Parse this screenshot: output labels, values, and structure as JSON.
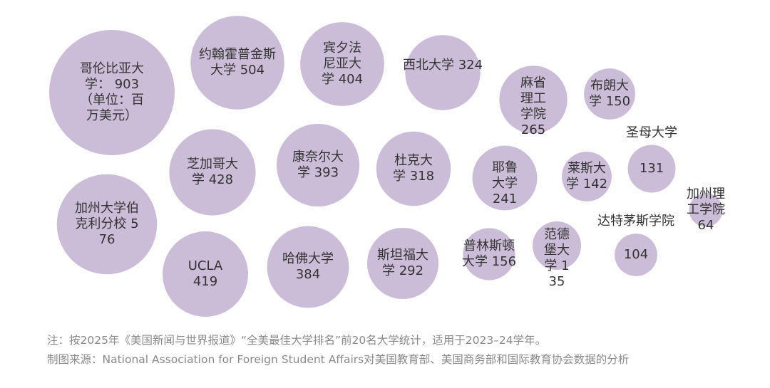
{
  "chart_data": {
    "type": "bubble",
    "categories": [
      "哥伦比亚大学：",
      "约翰霍普金斯大学",
      "宾夕法尼亚大学",
      "西北大学",
      "麻省理工学院",
      "布朗大学",
      "芝加哥大学",
      "康奈尔大学",
      "杜克大学",
      "耶鲁大学",
      "莱斯大学",
      "圣母大学",
      "加州大学伯克利分校",
      "UCLA",
      "哈佛大学",
      "斯坦福大学",
      "普林斯顿大学",
      "范德堡大学",
      "达特茅斯学院",
      "加州理工学院"
    ],
    "values": [
      903,
      504,
      404,
      324,
      265,
      150,
      428,
      393,
      318,
      241,
      142,
      131,
      576,
      419,
      384,
      292,
      156,
      135,
      104,
      64
    ],
    "annotation": "（单位：百万美元）",
    "color": "#cbbdd8",
    "note": "注：按2025年《美国新闻与世界报道》“全美最佳大学排名”前20名大学统计，适用于2023–24学年。",
    "source": "制图来源：National Association for Foreign Student Affairs对美国教育部、美国商务部和国际教育协会数据的分析"
  }
}
